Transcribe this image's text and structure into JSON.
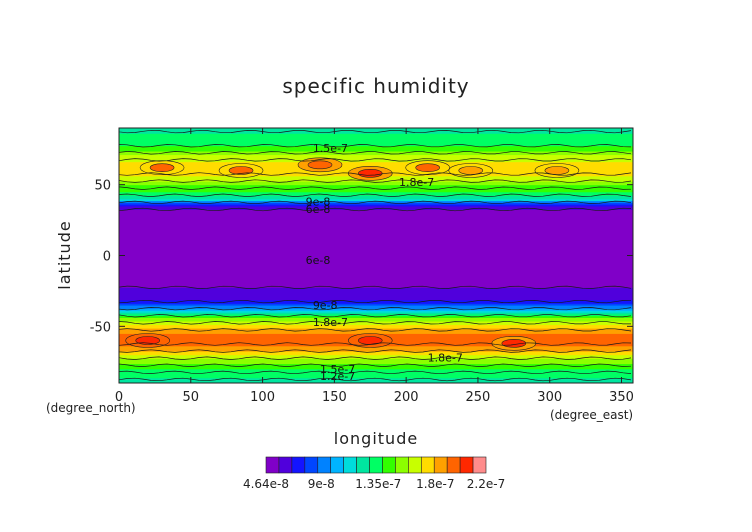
{
  "chart_data": {
    "type": "heatmap",
    "title": "specific humidity",
    "xlabel": "longitude",
    "ylabel": "latitude",
    "x_unit": "(degree_east)",
    "y_unit": "(degree_north)",
    "xlim": [
      0,
      358
    ],
    "ylim": [
      -90,
      90
    ],
    "x_ticks": [
      0,
      50,
      100,
      150,
      200,
      250,
      300,
      350
    ],
    "y_ticks": [
      -50,
      0,
      50
    ],
    "grid": false,
    "legend_placement": "bottom",
    "zonal_profile": [
      {
        "lat": -90,
        "value": 1.3e-07
      },
      {
        "lat": -85,
        "value": 1.35e-07
      },
      {
        "lat": -80,
        "value": 1.45e-07
      },
      {
        "lat": -75,
        "value": 1.6e-07
      },
      {
        "lat": -70,
        "value": 1.75e-07
      },
      {
        "lat": -65,
        "value": 1.95e-07
      },
      {
        "lat": -60,
        "value": 2.05e-07
      },
      {
        "lat": -55,
        "value": 2e-07
      },
      {
        "lat": -50,
        "value": 1.85e-07
      },
      {
        "lat": -45,
        "value": 1.6e-07
      },
      {
        "lat": -40,
        "value": 1.25e-07
      },
      {
        "lat": -35,
        "value": 8.5e-08
      },
      {
        "lat": -30,
        "value": 6.2e-08
      },
      {
        "lat": -25,
        "value": 5.8e-08
      },
      {
        "lat": -20,
        "value": 5.6e-08
      },
      {
        "lat": -15,
        "value": 5.6e-08
      },
      {
        "lat": -10,
        "value": 5.7e-08
      },
      {
        "lat": -5,
        "value": 5.5e-08
      },
      {
        "lat": 0,
        "value": 5e-08
      },
      {
        "lat": 5,
        "value": 4.8e-08
      },
      {
        "lat": 10,
        "value": 4.7e-08
      },
      {
        "lat": 15,
        "value": 4.7e-08
      },
      {
        "lat": 20,
        "value": 4.7e-08
      },
      {
        "lat": 25,
        "value": 4.8e-08
      },
      {
        "lat": 30,
        "value": 4.9e-08
      },
      {
        "lat": 35,
        "value": 6.5e-08
      },
      {
        "lat": 40,
        "value": 1.2e-07
      },
      {
        "lat": 45,
        "value": 1.45e-07
      },
      {
        "lat": 50,
        "value": 1.55e-07
      },
      {
        "lat": 55,
        "value": 1.75e-07
      },
      {
        "lat": 60,
        "value": 1.8e-07
      },
      {
        "lat": 65,
        "value": 1.8e-07
      },
      {
        "lat": 70,
        "value": 1.7e-07
      },
      {
        "lat": 75,
        "value": 1.5e-07
      },
      {
        "lat": 80,
        "value": 1.4e-07
      },
      {
        "lat": 85,
        "value": 1.35e-07
      },
      {
        "lat": 90,
        "value": 1.3e-07
      }
    ],
    "hotspots": [
      {
        "lon": 30,
        "lat": 62,
        "value": 2e-07
      },
      {
        "lon": 85,
        "lat": 60,
        "value": 2e-07
      },
      {
        "lon": 140,
        "lat": 64,
        "value": 2.05e-07
      },
      {
        "lon": 175,
        "lat": 58,
        "value": 2.1e-07
      },
      {
        "lon": 215,
        "lat": 62,
        "value": 2e-07
      },
      {
        "lon": 245,
        "lat": 60,
        "value": 1.95e-07
      },
      {
        "lon": 305,
        "lat": 60,
        "value": 1.9e-07
      },
      {
        "lon": 20,
        "lat": -60,
        "value": 2.15e-07
      },
      {
        "lon": 175,
        "lat": -60,
        "value": 2.15e-07
      },
      {
        "lon": 275,
        "lat": -62,
        "value": 2.1e-07
      }
    ],
    "contour_labels": [
      {
        "text": "1.5e-7",
        "lon": 135,
        "lat": 76
      },
      {
        "text": "1.8e-7",
        "lon": 195,
        "lat": 52
      },
      {
        "text": "9e-8",
        "lon": 130,
        "lat": 38
      },
      {
        "text": "6e-8",
        "lon": 130,
        "lat": 33
      },
      {
        "text": "6e-8",
        "lon": 130,
        "lat": -3
      },
      {
        "text": "9e-8",
        "lon": 135,
        "lat": -35
      },
      {
        "text": "1.8e-7",
        "lon": 135,
        "lat": -47
      },
      {
        "text": "1.8e-7",
        "lon": 215,
        "lat": -72
      },
      {
        "text": "1.5e-7",
        "lon": 140,
        "lat": -80
      },
      {
        "text": "1.2e-7",
        "lon": 140,
        "lat": -85
      }
    ],
    "colorbar": {
      "levels": [
        4.64e-08,
        9e-08,
        1.35e-07,
        1.8e-07,
        2.2e-07
      ],
      "tick_labels": [
        "4.64e-8",
        "9e-8",
        "1.35e-7",
        "1.8e-7",
        "2.2e-7"
      ],
      "colors": [
        "#8000c8",
        "#5000dc",
        "#1414ff",
        "#0046ff",
        "#0082ff",
        "#00b4ff",
        "#00dcdc",
        "#00e6a0",
        "#00ff64",
        "#32ff00",
        "#8cff00",
        "#c8ff00",
        "#ffdc00",
        "#ffa000",
        "#ff6400",
        "#ff2800",
        "#ff8c8c"
      ]
    }
  }
}
